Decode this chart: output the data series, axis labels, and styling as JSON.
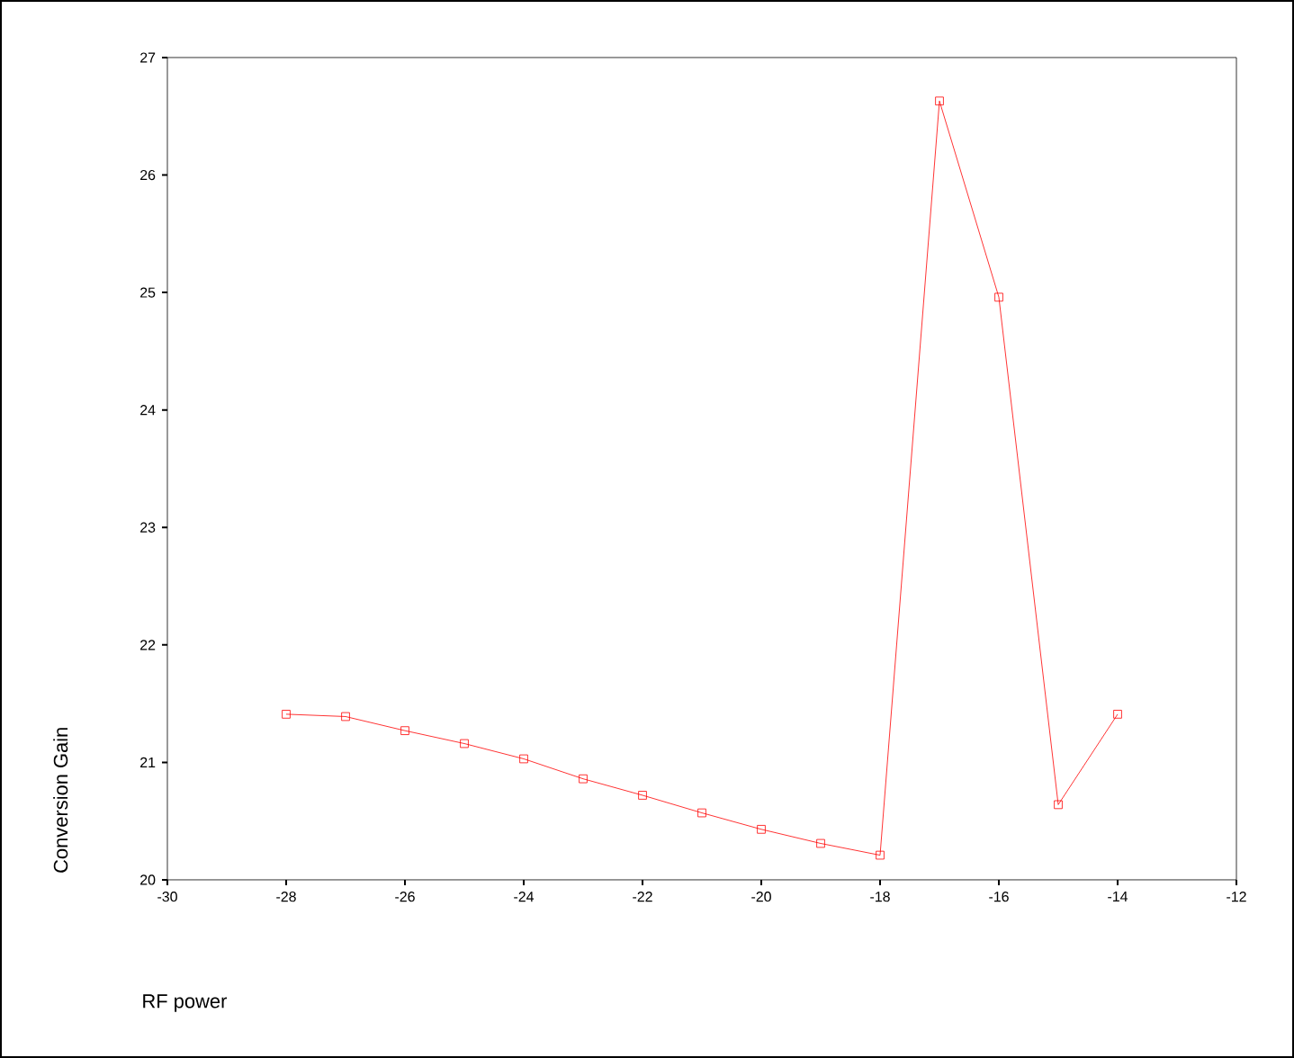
{
  "chart_data": {
    "type": "line",
    "xlabel": "RF power",
    "ylabel": "Conversion Gain",
    "x": [
      -28,
      -27,
      -26,
      -25,
      -24,
      -23,
      -22,
      -21,
      -20,
      -19,
      -18,
      -17,
      -16,
      -15,
      -14
    ],
    "series": [
      {
        "color": "#ff0000",
        "values": [
          21.41,
          21.39,
          21.27,
          21.16,
          21.03,
          20.86,
          20.72,
          20.57,
          20.43,
          20.31,
          20.21,
          26.63,
          24.96,
          20.64,
          21.41
        ]
      }
    ],
    "xlim": [
      -30,
      -12
    ],
    "xticks": [
      -30,
      -28,
      -26,
      -24,
      -22,
      -20,
      -18,
      -16,
      -14,
      -12
    ],
    "ylim": [
      20,
      27
    ],
    "yticks": [
      20,
      21,
      22,
      23,
      24,
      25,
      26,
      27
    ],
    "grid": false,
    "marker": "square",
    "line_style": "solid"
  }
}
